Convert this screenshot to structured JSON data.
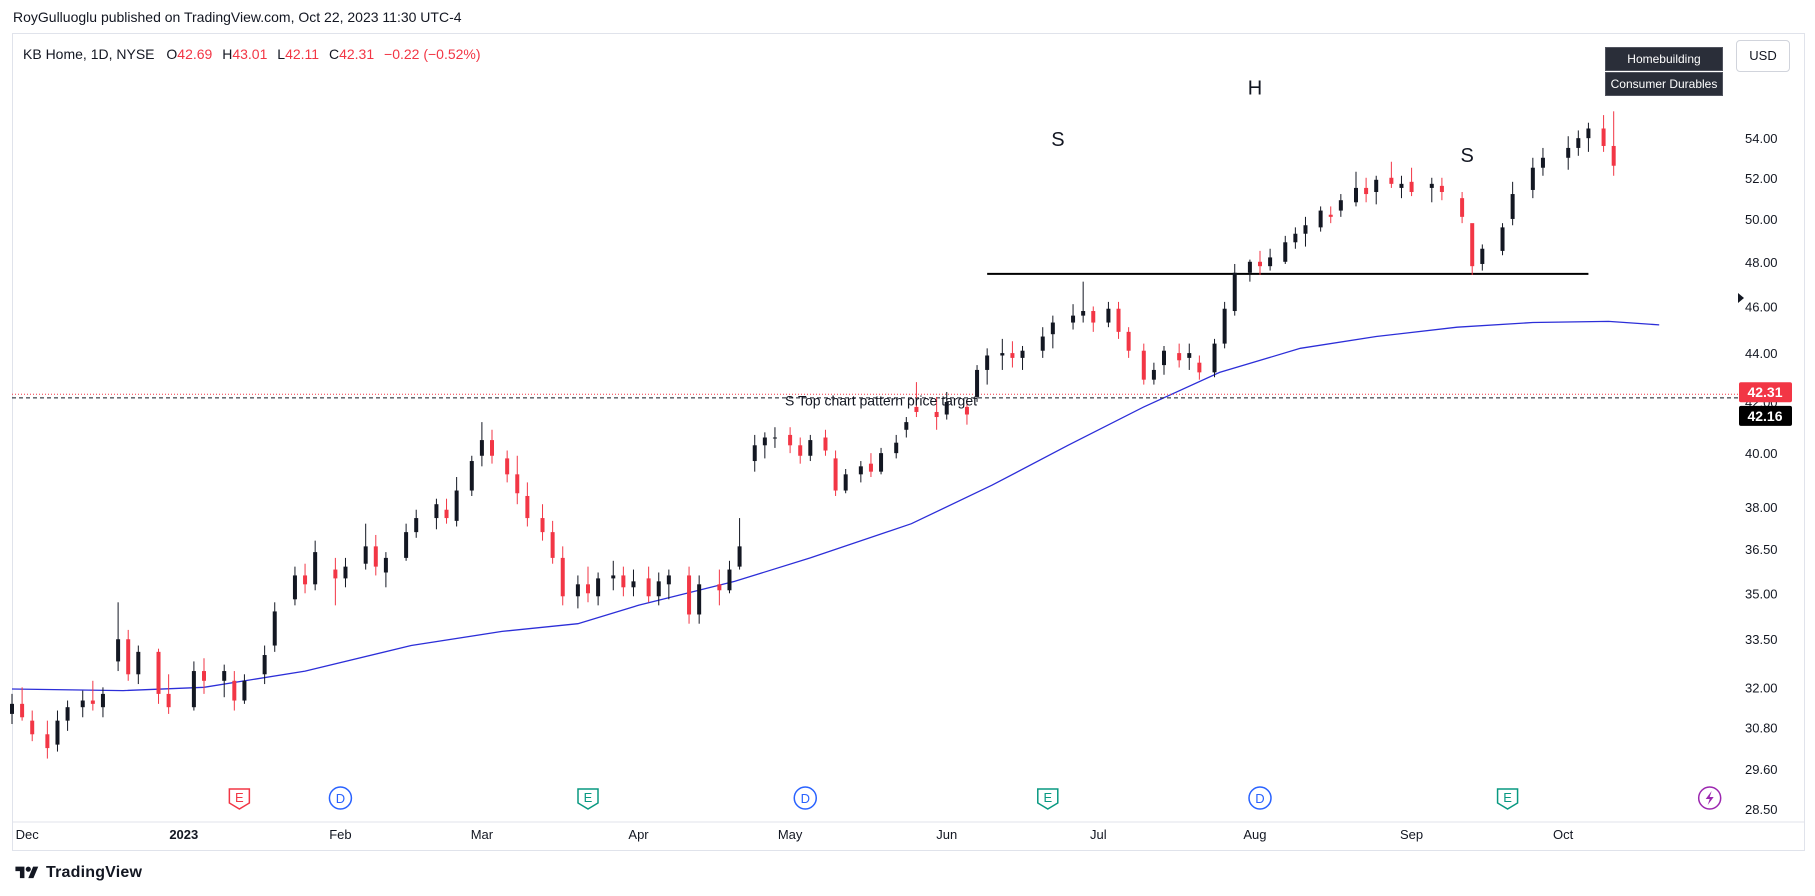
{
  "header": {
    "published_text": "RoyGulluoglu published on TradingView.com, Oct 22, 2023 11:30 UTC-4"
  },
  "symbol": {
    "name": "KB Home, 1D, NYSE",
    "open_label": "O",
    "open": "42.69",
    "high_label": "H",
    "high": "43.01",
    "low_label": "L",
    "low": "42.11",
    "close_label": "C",
    "close": "42.31",
    "change": "−0.22 (−0.52%)"
  },
  "tags": {
    "industry": "Homebuilding",
    "sector": "Consumer Durables"
  },
  "currency": "USD",
  "footer": {
    "brand": "TradingView"
  },
  "colors": {
    "up": "#131722",
    "down": "#f23645",
    "ma": "#2c2ed8",
    "price_tag_down": "#f23645",
    "price_tag_alt": "#000000"
  },
  "chart_data": {
    "type": "candlestick",
    "title": "",
    "price_axis": {
      "ticks": [
        "54.00",
        "52.00",
        "50.00",
        "48.00",
        "46.00",
        "44.00",
        "42.00",
        "40.00",
        "38.00",
        "36.50",
        "35.00",
        "33.50",
        "32.00",
        "30.80",
        "29.60",
        "28.50"
      ],
      "scale": "log",
      "range": [
        28.2,
        56.0
      ]
    },
    "time_axis": {
      "ticks": [
        {
          "label": "Dec",
          "date": "2022-12-01"
        },
        {
          "label": "2023",
          "date": "2023-01-01",
          "bold": true
        },
        {
          "label": "Feb",
          "date": "2023-02-01"
        },
        {
          "label": "Mar",
          "date": "2023-03-01"
        },
        {
          "label": "Apr",
          "date": "2023-04-01"
        },
        {
          "label": "May",
          "date": "2023-05-01"
        },
        {
          "label": "Jun",
          "date": "2023-06-01"
        },
        {
          "label": "Jul",
          "date": "2023-07-01"
        },
        {
          "label": "Aug",
          "date": "2023-08-01"
        },
        {
          "label": "Sep",
          "date": "2023-09-01"
        },
        {
          "label": "Oct",
          "date": "2023-10-01"
        }
      ],
      "range": [
        "2022-11-28",
        "2023-11-05"
      ]
    },
    "last_price": "42.31",
    "target_price": "42.16",
    "annotations": [
      {
        "text": "S",
        "date": "2023-06-23",
        "price": 53.6
      },
      {
        "text": "H",
        "date": "2023-08-01",
        "price": 56.3
      },
      {
        "text": "S",
        "date": "2023-09-12",
        "price": 52.8
      },
      {
        "text": "S Top chart pattern price target",
        "date": "2023-04-30",
        "price": 41.85
      }
    ],
    "neckline": {
      "from": "2023-06-09",
      "to": "2023-10-06",
      "price": 47.45
    },
    "target_line": {
      "price": 42.16
    },
    "event_markers": [
      {
        "type": "E",
        "date": "2023-01-12",
        "color": "#f23645"
      },
      {
        "type": "D",
        "date": "2023-02-01",
        "color": "#2962ff"
      },
      {
        "type": "E",
        "date": "2023-03-22",
        "color": "#089981"
      },
      {
        "type": "D",
        "date": "2023-05-04",
        "color": "#2962ff"
      },
      {
        "type": "E",
        "date": "2023-06-21",
        "color": "#089981"
      },
      {
        "type": "D",
        "date": "2023-08-02",
        "color": "#2962ff"
      },
      {
        "type": "E",
        "date": "2023-09-20",
        "color": "#089981"
      },
      {
        "type": "flash",
        "date": "2023-10-30",
        "color": "#9c27b0"
      }
    ],
    "moving_average": {
      "name": "",
      "points": [
        [
          "2022-11-28",
          31.95
        ],
        [
          "2022-12-20",
          31.9
        ],
        [
          "2023-01-05",
          32.0
        ],
        [
          "2023-01-25",
          32.5
        ],
        [
          "2023-02-15",
          33.3
        ],
        [
          "2023-03-05",
          33.75
        ],
        [
          "2023-03-20",
          34.0
        ],
        [
          "2023-04-01",
          34.6
        ],
        [
          "2023-04-20",
          35.4
        ],
        [
          "2023-05-05",
          36.2
        ],
        [
          "2023-05-25",
          37.4
        ],
        [
          "2023-06-10",
          38.8
        ],
        [
          "2023-06-25",
          40.3
        ],
        [
          "2023-07-10",
          41.8
        ],
        [
          "2023-07-25",
          43.2
        ],
        [
          "2023-08-10",
          44.2
        ],
        [
          "2023-08-25",
          44.7
        ],
        [
          "2023-09-10",
          45.1
        ],
        [
          "2023-09-25",
          45.3
        ],
        [
          "2023-10-10",
          45.35
        ],
        [
          "2023-10-20",
          45.2
        ]
      ]
    },
    "candles": [
      [
        "2022-11-28",
        31.2,
        31.8,
        30.9,
        31.5
      ],
      [
        "2022-11-30",
        31.5,
        32.0,
        31.0,
        31.1
      ],
      [
        "2022-12-02",
        31.0,
        31.3,
        30.4,
        30.6
      ],
      [
        "2022-12-05",
        30.6,
        31.0,
        29.9,
        30.2
      ],
      [
        "2022-12-07",
        30.3,
        31.3,
        30.1,
        31.0
      ],
      [
        "2022-12-09",
        31.0,
        31.6,
        30.7,
        31.4
      ],
      [
        "2022-12-12",
        31.4,
        31.9,
        31.1,
        31.6
      ],
      [
        "2022-12-14",
        31.6,
        32.2,
        31.3,
        31.5
      ],
      [
        "2022-12-16",
        31.4,
        32.0,
        31.1,
        31.8
      ],
      [
        "2022-12-19",
        32.8,
        34.7,
        32.5,
        33.5
      ],
      [
        "2022-12-21",
        33.5,
        33.8,
        32.2,
        32.4
      ],
      [
        "2022-12-23",
        32.4,
        33.3,
        32.1,
        33.1
      ],
      [
        "2022-12-27",
        33.1,
        33.2,
        31.5,
        31.8
      ],
      [
        "2022-12-29",
        31.8,
        32.4,
        31.2,
        31.4
      ],
      [
        "2023-01-03",
        31.4,
        32.8,
        31.3,
        32.5
      ],
      [
        "2023-01-05",
        32.5,
        32.9,
        31.8,
        32.2
      ],
      [
        "2023-01-09",
        32.2,
        32.7,
        31.7,
        32.5
      ],
      [
        "2023-01-11",
        32.2,
        32.5,
        31.3,
        31.6
      ],
      [
        "2023-01-13",
        31.6,
        32.4,
        31.5,
        32.2
      ],
      [
        "2023-01-17",
        32.4,
        33.3,
        32.1,
        33.0
      ],
      [
        "2023-01-19",
        33.3,
        34.7,
        33.1,
        34.4
      ],
      [
        "2023-01-23",
        34.8,
        35.9,
        34.6,
        35.6
      ],
      [
        "2023-01-25",
        35.6,
        36.0,
        35.0,
        35.3
      ],
      [
        "2023-01-27",
        35.3,
        36.8,
        35.1,
        36.4
      ],
      [
        "2023-01-31",
        35.8,
        36.2,
        34.6,
        35.5
      ],
      [
        "2023-02-02",
        35.5,
        36.2,
        35.2,
        35.9
      ],
      [
        "2023-02-06",
        36.0,
        37.4,
        35.8,
        36.6
      ],
      [
        "2023-02-08",
        36.6,
        37.0,
        35.6,
        35.9
      ],
      [
        "2023-02-10",
        35.7,
        36.4,
        35.2,
        36.2
      ],
      [
        "2023-02-14",
        36.2,
        37.4,
        36.1,
        37.1
      ],
      [
        "2023-02-16",
        37.1,
        37.9,
        36.9,
        37.6
      ],
      [
        "2023-02-20",
        37.6,
        38.3,
        37.2,
        38.1
      ],
      [
        "2023-02-22",
        37.9,
        38.3,
        37.4,
        37.6
      ],
      [
        "2023-02-24",
        37.5,
        39.1,
        37.3,
        38.6
      ],
      [
        "2023-02-27",
        38.6,
        39.9,
        38.4,
        39.7
      ],
      [
        "2023-03-01",
        39.9,
        41.2,
        39.5,
        40.5
      ],
      [
        "2023-03-03",
        40.5,
        40.9,
        39.6,
        39.9
      ],
      [
        "2023-03-06",
        39.8,
        40.1,
        38.9,
        39.2
      ],
      [
        "2023-03-08",
        39.2,
        39.9,
        38.1,
        38.5
      ],
      [
        "2023-03-10",
        38.4,
        38.9,
        37.3,
        37.6
      ],
      [
        "2023-03-13",
        37.6,
        38.1,
        36.8,
        37.1
      ],
      [
        "2023-03-15",
        37.1,
        37.5,
        36.0,
        36.2
      ],
      [
        "2023-03-17",
        36.2,
        36.6,
        34.6,
        34.9
      ],
      [
        "2023-03-20",
        34.9,
        35.6,
        34.5,
        35.3
      ],
      [
        "2023-03-22",
        35.3,
        35.9,
        34.7,
        35.0
      ],
      [
        "2023-03-24",
        34.9,
        35.7,
        34.6,
        35.5
      ],
      [
        "2023-03-27",
        35.5,
        36.1,
        35.1,
        35.6
      ],
      [
        "2023-03-29",
        35.6,
        35.9,
        34.9,
        35.2
      ],
      [
        "2023-03-31",
        35.2,
        35.8,
        34.9,
        35.4
      ],
      [
        "2023-04-03",
        35.5,
        35.9,
        34.7,
        34.9
      ],
      [
        "2023-04-05",
        34.9,
        35.7,
        34.6,
        35.4
      ],
      [
        "2023-04-07",
        35.3,
        35.8,
        34.8,
        35.6
      ],
      [
        "2023-04-11",
        35.6,
        35.9,
        34.0,
        34.3
      ],
      [
        "2023-04-13",
        34.3,
        35.6,
        34.0,
        35.3
      ],
      [
        "2023-04-17",
        35.3,
        35.8,
        34.6,
        35.1
      ],
      [
        "2023-04-19",
        35.1,
        36.1,
        35.0,
        35.8
      ],
      [
        "2023-04-21",
        35.9,
        37.6,
        35.8,
        36.6
      ],
      [
        "2023-04-24",
        39.7,
        40.7,
        39.3,
        40.3
      ],
      [
        "2023-04-26",
        40.3,
        40.8,
        39.8,
        40.6
      ],
      [
        "2023-04-28",
        40.6,
        41.0,
        40.2,
        40.6
      ],
      [
        "2023-05-01",
        40.7,
        41.0,
        40.0,
        40.3
      ],
      [
        "2023-05-03",
        40.3,
        40.6,
        39.6,
        39.9
      ],
      [
        "2023-05-05",
        39.9,
        40.7,
        39.7,
        40.5
      ],
      [
        "2023-05-08",
        40.6,
        40.9,
        39.9,
        40.1
      ],
      [
        "2023-05-10",
        39.8,
        40.1,
        38.4,
        38.6
      ],
      [
        "2023-05-12",
        38.6,
        39.4,
        38.5,
        39.2
      ],
      [
        "2023-05-15",
        39.2,
        39.7,
        38.9,
        39.5
      ],
      [
        "2023-05-17",
        39.6,
        40.0,
        39.1,
        39.3
      ],
      [
        "2023-05-19",
        39.3,
        40.2,
        39.2,
        40.0
      ],
      [
        "2023-05-22",
        40.0,
        40.7,
        39.8,
        40.4
      ],
      [
        "2023-05-24",
        40.9,
        41.4,
        40.6,
        41.2
      ],
      [
        "2023-05-26",
        41.8,
        42.8,
        41.4,
        41.6
      ],
      [
        "2023-05-30",
        41.6,
        42.2,
        40.9,
        41.4
      ],
      [
        "2023-06-01",
        41.5,
        42.4,
        41.3,
        42.0
      ],
      [
        "2023-06-05",
        41.8,
        42.1,
        41.1,
        41.5
      ],
      [
        "2023-06-07",
        42.2,
        43.5,
        42.0,
        43.3
      ],
      [
        "2023-06-09",
        43.3,
        44.2,
        42.7,
        43.9
      ],
      [
        "2023-06-12",
        43.9,
        44.6,
        43.3,
        44.0
      ],
      [
        "2023-06-14",
        44.0,
        44.5,
        43.4,
        43.8
      ],
      [
        "2023-06-16",
        43.8,
        44.3,
        43.3,
        44.1
      ],
      [
        "2023-06-20",
        44.1,
        45.1,
        43.8,
        44.7
      ],
      [
        "2023-06-22",
        44.8,
        45.6,
        44.2,
        45.3
      ],
      [
        "2023-06-26",
        45.3,
        46.1,
        45.0,
        45.6
      ],
      [
        "2023-06-28",
        45.6,
        47.1,
        45.3,
        45.8
      ],
      [
        "2023-06-30",
        45.8,
        46.0,
        44.9,
        45.3
      ],
      [
        "2023-07-03",
        45.3,
        46.2,
        45.1,
        45.9
      ],
      [
        "2023-07-05",
        45.9,
        46.2,
        44.6,
        44.9
      ],
      [
        "2023-07-07",
        44.9,
        45.1,
        43.8,
        44.1
      ],
      [
        "2023-07-10",
        44.1,
        44.4,
        42.7,
        42.9
      ],
      [
        "2023-07-12",
        42.9,
        43.6,
        42.7,
        43.3
      ],
      [
        "2023-07-14",
        43.5,
        44.3,
        43.1,
        44.1
      ],
      [
        "2023-07-17",
        44.0,
        44.4,
        43.4,
        43.7
      ],
      [
        "2023-07-19",
        43.8,
        44.4,
        43.3,
        44.0
      ],
      [
        "2023-07-21",
        43.6,
        43.9,
        42.9,
        43.2
      ],
      [
        "2023-07-24",
        43.2,
        44.6,
        43.0,
        44.4
      ],
      [
        "2023-07-26",
        44.4,
        46.2,
        44.2,
        45.9
      ],
      [
        "2023-07-28",
        45.8,
        47.9,
        45.6,
        47.5
      ],
      [
        "2023-07-31",
        47.5,
        48.1,
        47.1,
        48.0
      ],
      [
        "2023-08-02",
        48.0,
        48.5,
        47.4,
        47.8
      ],
      [
        "2023-08-04",
        47.8,
        48.6,
        47.6,
        48.2
      ],
      [
        "2023-08-07",
        48.0,
        49.2,
        47.9,
        48.9
      ],
      [
        "2023-08-09",
        48.9,
        49.6,
        48.6,
        49.3
      ],
      [
        "2023-08-11",
        49.3,
        50.1,
        48.7,
        49.7
      ],
      [
        "2023-08-14",
        49.6,
        50.6,
        49.4,
        50.4
      ],
      [
        "2023-08-16",
        50.2,
        50.6,
        49.8,
        50.1
      ],
      [
        "2023-08-18",
        50.4,
        51.2,
        50.1,
        50.9
      ],
      [
        "2023-08-21",
        50.8,
        52.3,
        50.6,
        51.5
      ],
      [
        "2023-08-23",
        51.5,
        52.0,
        50.8,
        51.2
      ],
      [
        "2023-08-25",
        51.3,
        52.1,
        50.7,
        51.9
      ],
      [
        "2023-08-28",
        52.0,
        52.8,
        51.5,
        51.7
      ],
      [
        "2023-08-30",
        51.5,
        52.1,
        51.0,
        51.7
      ],
      [
        "2023-09-01",
        51.8,
        52.5,
        51.1,
        51.3
      ],
      [
        "2023-09-05",
        51.5,
        52.0,
        50.8,
        51.7
      ],
      [
        "2023-09-07",
        51.6,
        52.0,
        50.9,
        51.3
      ],
      [
        "2023-09-11",
        51.0,
        51.3,
        49.8,
        50.1
      ],
      [
        "2023-09-13",
        49.8,
        49.6,
        47.4,
        47.8
      ],
      [
        "2023-09-15",
        47.9,
        48.8,
        47.6,
        48.6
      ],
      [
        "2023-09-19",
        48.5,
        49.8,
        48.3,
        49.6
      ],
      [
        "2023-09-21",
        50.0,
        51.8,
        49.7,
        51.2
      ],
      [
        "2023-09-25",
        51.4,
        53.0,
        51.0,
        52.5
      ],
      [
        "2023-09-27",
        52.5,
        53.5,
        52.1,
        53.0
      ],
      [
        "2023-10-02",
        53.0,
        54.1,
        52.4,
        53.5
      ],
      [
        "2023-10-04",
        53.5,
        54.4,
        53.1,
        54.0
      ],
      [
        "2023-10-06",
        54.0,
        54.8,
        53.3,
        54.5
      ],
      [
        "2023-10-09",
        54.5,
        55.2,
        53.3,
        53.6
      ],
      [
        "2023-10-11",
        53.6,
        55.4,
        52.1,
        52.6
      ]
    ]
  }
}
